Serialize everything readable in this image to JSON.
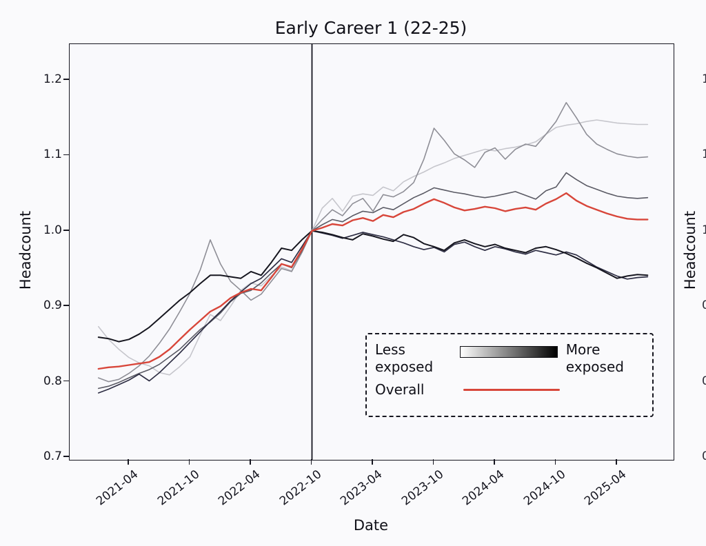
{
  "title": "Early Career 1 (22-25)",
  "x_axis": {
    "label": "Date",
    "ticks": [
      "2021-04",
      "2021-10",
      "2022-04",
      "2022-10",
      "2023-04",
      "2023-10",
      "2024-04",
      "2024-10",
      "2025-04"
    ]
  },
  "y_axis_left": {
    "label": "Headcount",
    "ticks": [
      "1.2",
      "1.1",
      "1.0",
      "0.9",
      "0.8",
      "0.7"
    ]
  },
  "y_axis_right": {
    "label": "Headcount",
    "edge_fragments": [
      "1",
      "1",
      "1",
      "0",
      "0",
      "0"
    ]
  },
  "legend": {
    "less_label": "Less exposed",
    "more_label": "More exposed",
    "overall_label": "Overall",
    "gradient_from": "#ffffff",
    "gradient_to": "#000000",
    "overall_color": "#d8463a"
  },
  "chart_data": {
    "type": "line",
    "title": "Early Career 1 (22-25)",
    "xlabel": "Date",
    "ylabel": "Headcount",
    "ylim": [
      0.695,
      1.247
    ],
    "x_tick_labels": [
      "2021-04",
      "2021-10",
      "2022-04",
      "2022-10",
      "2023-04",
      "2023-10",
      "2024-04",
      "2024-10",
      "2025-04"
    ],
    "x_monthly_start": "2021-01",
    "n_months": 55,
    "vline_x": "2022-10",
    "vline_color": "#15151f",
    "baseline_note_visible": false,
    "series": [
      {
        "name": "quintile-1-least-exposed",
        "color": "#c6c6cc",
        "width": 1.6,
        "values": [
          0.873,
          0.856,
          0.843,
          0.832,
          0.825,
          0.821,
          0.812,
          0.809,
          0.82,
          0.833,
          0.862,
          0.889,
          0.881,
          0.9,
          0.921,
          0.931,
          0.927,
          0.94,
          0.952,
          0.947,
          0.972,
          1.0,
          1.03,
          1.043,
          1.026,
          1.046,
          1.049,
          1.047,
          1.058,
          1.053,
          1.065,
          1.072,
          1.078,
          1.085,
          1.09,
          1.096,
          1.1,
          1.104,
          1.108,
          1.106,
          1.109,
          1.111,
          1.114,
          1.118,
          1.128,
          1.137,
          1.14,
          1.142,
          1.145,
          1.147,
          1.145,
          1.143,
          1.142,
          1.141,
          1.141
        ]
      },
      {
        "name": "quintile-2",
        "color": "#8e8e96",
        "width": 1.6,
        "values": [
          0.805,
          0.8,
          0.803,
          0.811,
          0.821,
          0.834,
          0.851,
          0.87,
          0.893,
          0.917,
          0.948,
          0.988,
          0.956,
          0.933,
          0.921,
          0.908,
          0.916,
          0.933,
          0.95,
          0.946,
          0.971,
          1.0,
          1.015,
          1.028,
          1.02,
          1.036,
          1.043,
          1.026,
          1.048,
          1.045,
          1.052,
          1.064,
          1.095,
          1.136,
          1.12,
          1.102,
          1.094,
          1.084,
          1.104,
          1.11,
          1.095,
          1.108,
          1.115,
          1.112,
          1.128,
          1.145,
          1.17,
          1.15,
          1.128,
          1.115,
          1.108,
          1.102,
          1.099,
          1.097,
          1.098
        ]
      },
      {
        "name": "quintile-3",
        "color": "#5a5a64",
        "width": 1.6,
        "values": [
          0.791,
          0.794,
          0.799,
          0.805,
          0.811,
          0.816,
          0.823,
          0.833,
          0.843,
          0.856,
          0.869,
          0.879,
          0.891,
          0.906,
          0.917,
          0.921,
          0.931,
          0.944,
          0.956,
          0.951,
          0.973,
          1.0,
          1.008,
          1.015,
          1.012,
          1.02,
          1.026,
          1.024,
          1.031,
          1.028,
          1.036,
          1.044,
          1.05,
          1.057,
          1.054,
          1.051,
          1.049,
          1.046,
          1.044,
          1.046,
          1.049,
          1.052,
          1.047,
          1.042,
          1.053,
          1.058,
          1.077,
          1.068,
          1.06,
          1.055,
          1.05,
          1.046,
          1.044,
          1.043,
          1.044
        ]
      },
      {
        "name": "quintile-4",
        "color": "#2e2e44",
        "width": 1.7,
        "values": [
          0.785,
          0.79,
          0.796,
          0.802,
          0.81,
          0.801,
          0.812,
          0.825,
          0.838,
          0.852,
          0.866,
          0.88,
          0.893,
          0.907,
          0.919,
          0.93,
          0.937,
          0.95,
          0.963,
          0.958,
          0.979,
          1.0,
          0.997,
          0.994,
          0.99,
          0.994,
          0.998,
          0.995,
          0.992,
          0.988,
          0.984,
          0.979,
          0.975,
          0.978,
          0.972,
          0.982,
          0.985,
          0.979,
          0.974,
          0.979,
          0.976,
          0.972,
          0.969,
          0.974,
          0.971,
          0.968,
          0.972,
          0.968,
          0.96,
          0.952,
          0.946,
          0.94,
          0.936,
          0.938,
          0.939
        ]
      },
      {
        "name": "quintile-5-most-exposed",
        "color": "#16161f",
        "width": 2.0,
        "values": [
          0.859,
          0.857,
          0.853,
          0.856,
          0.863,
          0.872,
          0.884,
          0.896,
          0.908,
          0.918,
          0.93,
          0.941,
          0.941,
          0.939,
          0.937,
          0.946,
          0.941,
          0.958,
          0.977,
          0.974,
          0.988,
          1.0,
          0.998,
          0.995,
          0.991,
          0.988,
          0.996,
          0.993,
          0.989,
          0.986,
          0.995,
          0.991,
          0.983,
          0.979,
          0.974,
          0.984,
          0.988,
          0.983,
          0.979,
          0.982,
          0.977,
          0.974,
          0.971,
          0.977,
          0.979,
          0.975,
          0.97,
          0.964,
          0.957,
          0.951,
          0.944,
          0.937,
          0.94,
          0.942,
          0.941
        ]
      },
      {
        "name": "overall",
        "color": "#d8463a",
        "width": 2.4,
        "values": [
          0.817,
          0.819,
          0.82,
          0.822,
          0.824,
          0.826,
          0.833,
          0.843,
          0.856,
          0.869,
          0.881,
          0.893,
          0.9,
          0.911,
          0.918,
          0.923,
          0.921,
          0.938,
          0.956,
          0.952,
          0.975,
          1.0,
          1.004,
          1.009,
          1.007,
          1.014,
          1.017,
          1.013,
          1.021,
          1.018,
          1.025,
          1.029,
          1.036,
          1.042,
          1.037,
          1.031,
          1.027,
          1.029,
          1.032,
          1.03,
          1.026,
          1.029,
          1.031,
          1.028,
          1.036,
          1.042,
          1.05,
          1.04,
          1.033,
          1.028,
          1.023,
          1.019,
          1.016,
          1.015,
          1.015
        ]
      }
    ]
  }
}
